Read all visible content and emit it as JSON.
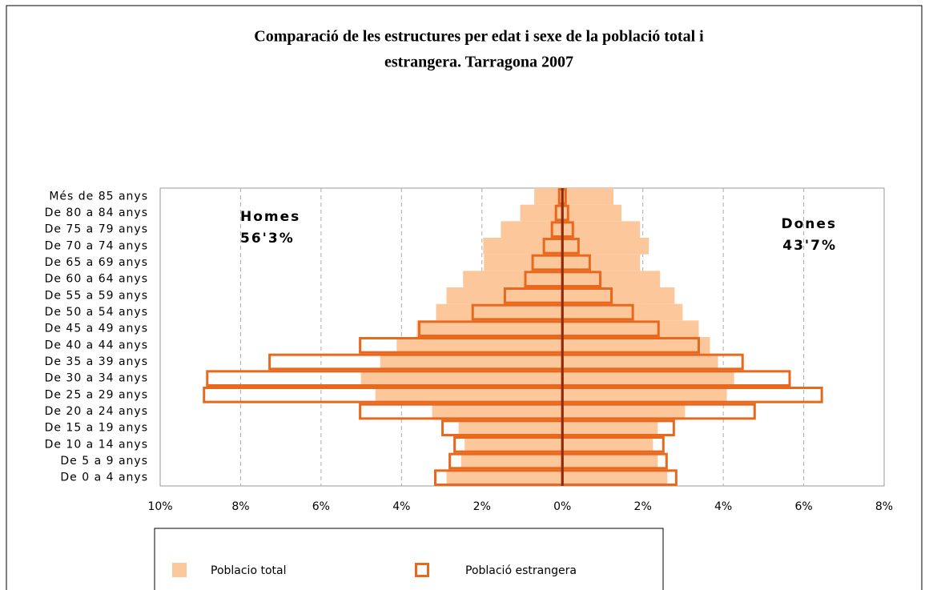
{
  "chart_data": {
    "type": "pyramid",
    "title_lines": [
      "Comparació de les estructures per edat i sexe de la població total i",
      "estrangera. Tarragona 2007"
    ],
    "annotations": {
      "left": [
        "Homes",
        "56'3%"
      ],
      "right": [
        "Dones",
        "43'7%"
      ]
    },
    "categories": [
      "Més de 85 anys",
      "De 80 a 84 anys",
      "De 75 a 79 anys",
      "De 70 a 74 anys",
      "De 65 a 69 anys",
      "De 60 a 64 anys",
      "De 55 a 59 anys",
      "De 50 a 54 anys",
      "De 45 a 49 anys",
      "De 40 a 44 anys",
      "De 35 a 39 anys",
      "De 30 a 34 anys",
      "De 25 a 29 anys",
      "De 20 a 24 anys",
      "De 15 a 19 anys",
      "De 10 a 14 anys",
      "De 5 a 9 anys",
      "De 0 a 4 anys"
    ],
    "series": [
      {
        "name": "Poblacio total",
        "color": "#fcc89b",
        "style": "fill",
        "homes": [
          -0.7,
          -1.05,
          -1.53,
          -1.97,
          -1.95,
          -2.47,
          -2.88,
          -3.14,
          -3.62,
          -4.12,
          -4.53,
          -5.01,
          -4.65,
          -3.24,
          -2.58,
          -2.43,
          -2.52,
          -2.88
        ],
        "dones": [
          1.27,
          1.47,
          1.93,
          2.15,
          1.93,
          2.43,
          2.79,
          2.99,
          3.39,
          3.67,
          3.87,
          4.27,
          4.09,
          3.05,
          2.37,
          2.25,
          2.37,
          2.61
        ]
      },
      {
        "name": "Població estrangera",
        "color": "#e8681e",
        "style": "outline",
        "homes": [
          -0.08,
          -0.16,
          -0.26,
          -0.46,
          -0.74,
          -0.92,
          -1.43,
          -2.23,
          -3.56,
          -5.03,
          -7.28,
          -8.83,
          -8.91,
          -5.03,
          -2.98,
          -2.68,
          -2.8,
          -3.16
        ],
        "dones": [
          0.08,
          0.14,
          0.26,
          0.4,
          0.68,
          0.94,
          1.22,
          1.75,
          2.39,
          3.39,
          4.48,
          5.65,
          6.45,
          4.78,
          2.77,
          2.51,
          2.59,
          2.83
        ]
      }
    ],
    "xlim": [
      -10,
      8
    ],
    "xticks": [
      {
        "value": -10,
        "label": "10%"
      },
      {
        "value": -8,
        "label": "8%"
      },
      {
        "value": -6,
        "label": "6%"
      },
      {
        "value": -4,
        "label": "4%"
      },
      {
        "value": -2,
        "label": "2%"
      },
      {
        "value": 0,
        "label": "0%"
      },
      {
        "value": 2,
        "label": "2%"
      },
      {
        "value": 4,
        "label": "4%"
      },
      {
        "value": 6,
        "label": "6%"
      },
      {
        "value": 8,
        "label": "8%"
      }
    ],
    "grid": true
  }
}
